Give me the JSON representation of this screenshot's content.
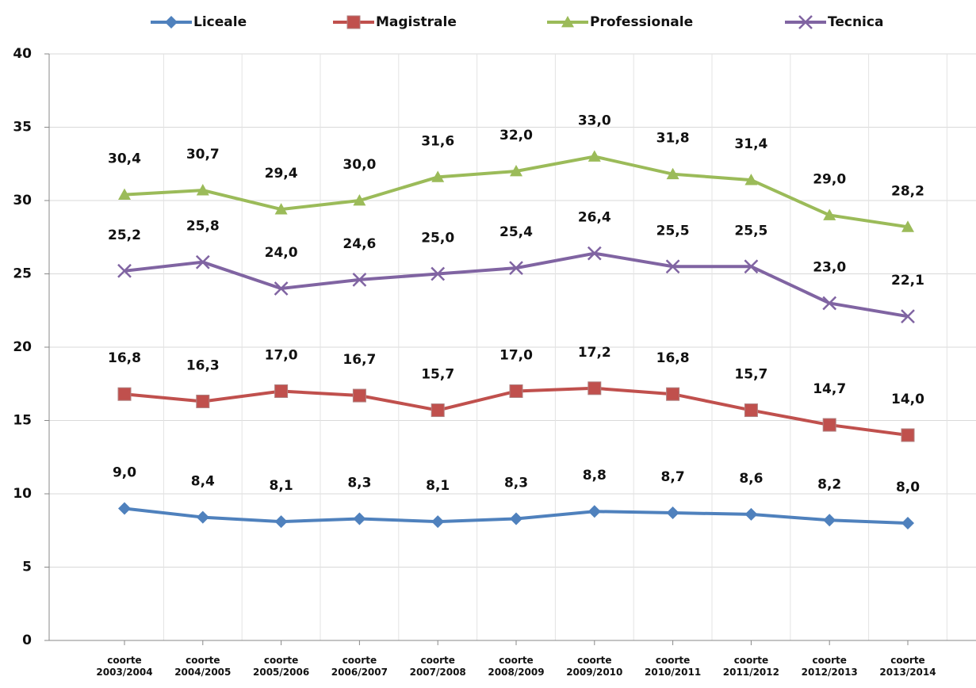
{
  "chart_data": {
    "type": "line",
    "categories": [
      "coorte\n2003/2004",
      "coorte\n2004/2005",
      "coorte\n2005/2006",
      "coorte\n2006/2007",
      "coorte\n2007/2008",
      "coorte\n2008/2009",
      "coorte\n2009/2010",
      "coorte\n2010/2011",
      "coorte\n2011/2012",
      "coorte\n2012/2013",
      "coorte\n2013/2014"
    ],
    "series": [
      {
        "name": "Liceale",
        "color": "#4f81bd",
        "marker": "diamond",
        "values": [
          9.0,
          8.4,
          8.1,
          8.3,
          8.1,
          8.3,
          8.8,
          8.7,
          8.6,
          8.2,
          8.0
        ],
        "value_labels": [
          "9,0",
          "8,4",
          "8,1",
          "8,3",
          "8,1",
          "8,3",
          "8,8",
          "8,7",
          "8,6",
          "8,2",
          "8,0"
        ]
      },
      {
        "name": "Magistrale",
        "color": "#c0504d",
        "marker": "square",
        "values": [
          16.8,
          16.3,
          17.0,
          16.7,
          15.7,
          17.0,
          17.2,
          16.8,
          15.7,
          14.7,
          14.0
        ],
        "value_labels": [
          "16,8",
          "16,3",
          "17,0",
          "16,7",
          "15,7",
          "17,0",
          "17,2",
          "16,8",
          "15,7",
          "14,7",
          "14,0"
        ]
      },
      {
        "name": "Professionale",
        "color": "#9bbb59",
        "marker": "triangle",
        "values": [
          30.4,
          30.7,
          29.4,
          30.0,
          31.6,
          32.0,
          33.0,
          31.8,
          31.4,
          29.0,
          28.2
        ],
        "value_labels": [
          "30,4",
          "30,7",
          "29,4",
          "30,0",
          "31,6",
          "32,0",
          "33,0",
          "31,8",
          "31,4",
          "29,0",
          "28,2"
        ]
      },
      {
        "name": "Tecnica",
        "color": "#8064a2",
        "marker": "x",
        "values": [
          25.2,
          25.8,
          24.0,
          24.6,
          25.0,
          25.4,
          26.4,
          25.5,
          25.5,
          23.0,
          22.1
        ],
        "value_labels": [
          "25,2",
          "25,8",
          "24,0",
          "24,6",
          "25,0",
          "25,4",
          "26,4",
          "25,5",
          "25,5",
          "23,0",
          "22,1"
        ]
      }
    ],
    "ylim": [
      0,
      40
    ],
    "yticks": [
      0,
      5,
      10,
      15,
      20,
      25,
      30,
      35,
      40
    ],
    "grid": true,
    "legend": "top"
  }
}
